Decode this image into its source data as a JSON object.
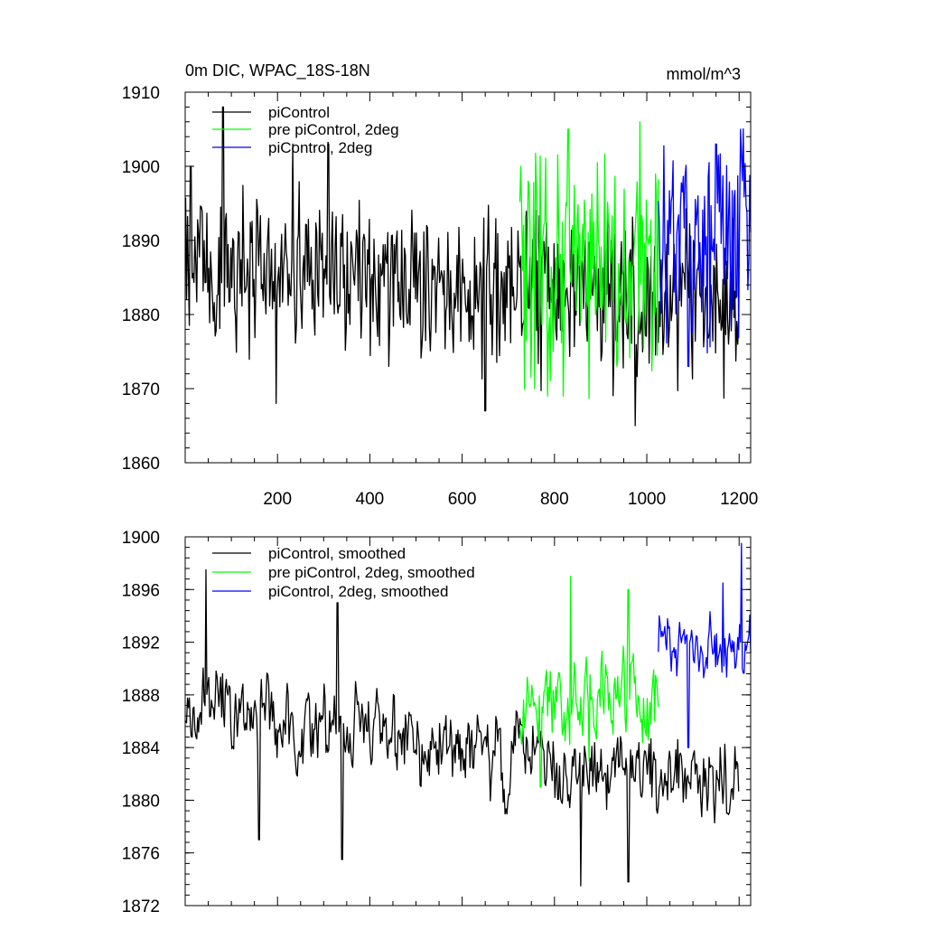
{
  "chart_data": [
    {
      "type": "line",
      "title": "0m DIC, WPAC_18S-18N",
      "units": "mmol/m^3",
      "xlim": [
        0,
        1225
      ],
      "ylim": [
        1860,
        1910
      ],
      "xticks": [
        200,
        400,
        600,
        800,
        1000,
        1200
      ],
      "xtick_labels": [
        "200",
        "400",
        "600",
        "800",
        "1000",
        "1200"
      ],
      "yticks": [
        1860,
        1870,
        1880,
        1890,
        1900,
        1910
      ],
      "ytick_labels": [
        "1860",
        "1870",
        "1880",
        "1890",
        "1900",
        "1910"
      ],
      "legend_position": "top-left",
      "series": [
        {
          "name": "piControl",
          "color": "#000000",
          "x_start": 1,
          "x_end": 1200,
          "mean": 1886.5,
          "trend": -0.004,
          "noise": 5.5,
          "peaks": [
            [
              82,
              1908
            ],
            [
              12,
              1900
            ],
            [
              233,
              1903
            ],
            [
              310,
              1903
            ],
            [
              197,
              1868
            ],
            [
              650,
              1867
            ],
            [
              975,
              1865
            ]
          ]
        },
        {
          "name": "pre piControl, 2deg",
          "color": "#00ff00",
          "x_start": 725,
          "x_end": 1025,
          "mean": 1886.5,
          "trend": 0.0,
          "noise": 7.5,
          "peaks": [
            [
              830,
              1905
            ],
            [
              985,
              1906
            ],
            [
              757,
              1870
            ],
            [
              785,
              1869
            ],
            [
              727,
              1900
            ]
          ]
        },
        {
          "name": "piControl, 2deg",
          "color": "#0000ff",
          "x_start": 1025,
          "x_end": 1225,
          "mean": 1891.5,
          "trend": 0.0,
          "noise": 6.0,
          "peaks": [
            [
              1203,
              1905
            ],
            [
              1090,
              1873
            ],
            [
              1150,
              1903
            ]
          ]
        }
      ]
    },
    {
      "type": "line",
      "title": "",
      "xlim": [
        0,
        1225
      ],
      "ylim": [
        1872,
        1900
      ],
      "xticks": [
        200,
        400,
        600,
        800,
        1000,
        1200
      ],
      "yticks": [
        1872,
        1876,
        1880,
        1884,
        1888,
        1892,
        1896,
        1900
      ],
      "ytick_labels": [
        "1872",
        "1876",
        "1880",
        "1884",
        "1888",
        "1892",
        "1896",
        "1900"
      ],
      "legend_position": "top-left",
      "series": [
        {
          "name": "piControl, smoothed",
          "color": "#000000",
          "x_start": 1,
          "x_end": 1200,
          "mean": 1887,
          "trend": -0.005,
          "noise": 3.0,
          "peaks": [
            [
              45,
              1897.5
            ],
            [
              330,
              1895
            ],
            [
              160,
              1877
            ],
            [
              340,
              1875.5
            ],
            [
              857,
              1873.5
            ],
            [
              960,
              1873.8
            ]
          ]
        },
        {
          "name": "pre piControl, 2deg, smoothed",
          "color": "#00ff00",
          "x_start": 725,
          "x_end": 1025,
          "mean": 1887.5,
          "trend": 0.0,
          "noise": 3.5,
          "peaks": [
            [
              835,
              1897
            ],
            [
              960,
              1896
            ],
            [
              770,
              1881
            ],
            [
              875,
              1883
            ]
          ]
        },
        {
          "name": "piControl, 2deg, smoothed",
          "color": "#0000ff",
          "x_start": 1025,
          "x_end": 1225,
          "mean": 1891,
          "trend": 0.0,
          "noise": 2.5,
          "peaks": [
            [
              1205,
              1899.5
            ],
            [
              1090,
              1884
            ],
            [
              1165,
              1896.5
            ]
          ]
        }
      ]
    }
  ]
}
